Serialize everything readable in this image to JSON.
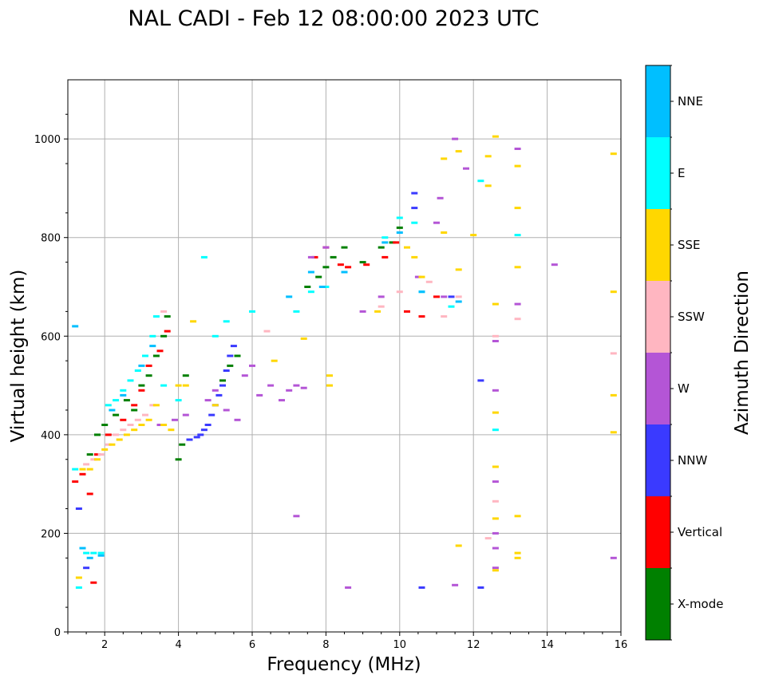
{
  "chart_data": {
    "type": "scatter",
    "title": "NAL CADI - Feb 12 08:00:00 2023 UTC",
    "xlabel": "Frequency (MHz)",
    "ylabel": "Virtual height (km)",
    "xlim": [
      1,
      16
    ],
    "ylim": [
      0,
      1120
    ],
    "xticks": [
      2,
      4,
      6,
      8,
      10,
      12,
      14,
      16
    ],
    "yticks": [
      0,
      200,
      400,
      600,
      800,
      1000
    ],
    "grid": true,
    "colorbar": {
      "label": "Azimuth Direction",
      "categories": [
        {
          "name": "X-mode",
          "color": "#008000"
        },
        {
          "name": "Vertical",
          "color": "#ff0000"
        },
        {
          "name": "NNW",
          "color": "#3a3aff"
        },
        {
          "name": "W",
          "color": "#b455d6"
        },
        {
          "name": "SSW",
          "color": "#ffb6c1"
        },
        {
          "name": "SSE",
          "color": "#ffd700"
        },
        {
          "name": "E",
          "color": "#00ffff"
        },
        {
          "name": "NNE",
          "color": "#00bfff"
        }
      ]
    },
    "series": [
      {
        "name": "X-mode",
        "points": [
          [
            1.6,
            360
          ],
          [
            1.8,
            400
          ],
          [
            2.0,
            420
          ],
          [
            2.3,
            440
          ],
          [
            2.6,
            470
          ],
          [
            2.8,
            450
          ],
          [
            3.0,
            500
          ],
          [
            3.2,
            520
          ],
          [
            3.4,
            560
          ],
          [
            3.6,
            600
          ],
          [
            3.7,
            640
          ],
          [
            4.0,
            350
          ],
          [
            4.1,
            380
          ],
          [
            4.2,
            520
          ],
          [
            5.2,
            510
          ],
          [
            5.4,
            540
          ],
          [
            5.6,
            560
          ],
          [
            7.5,
            700
          ],
          [
            7.8,
            720
          ],
          [
            8.0,
            740
          ],
          [
            8.2,
            760
          ],
          [
            8.5,
            780
          ],
          [
            9.0,
            750
          ],
          [
            9.5,
            780
          ],
          [
            9.8,
            790
          ],
          [
            10.0,
            820
          ]
        ]
      },
      {
        "name": "Vertical",
        "points": [
          [
            1.2,
            305
          ],
          [
            1.4,
            320
          ],
          [
            1.6,
            280
          ],
          [
            1.7,
            100
          ],
          [
            1.8,
            360
          ],
          [
            2.1,
            400
          ],
          [
            2.5,
            430
          ],
          [
            2.8,
            460
          ],
          [
            3.0,
            490
          ],
          [
            3.2,
            540
          ],
          [
            3.5,
            570
          ],
          [
            3.7,
            610
          ],
          [
            7.7,
            760
          ],
          [
            8.0,
            780
          ],
          [
            8.4,
            745
          ],
          [
            8.6,
            740
          ],
          [
            9.1,
            745
          ],
          [
            9.6,
            760
          ],
          [
            9.9,
            790
          ],
          [
            10.2,
            650
          ],
          [
            10.6,
            640
          ],
          [
            11.0,
            680
          ]
        ]
      },
      {
        "name": "NNW",
        "points": [
          [
            1.3,
            250
          ],
          [
            1.5,
            130
          ],
          [
            4.3,
            390
          ],
          [
            4.5,
            395
          ],
          [
            4.6,
            400
          ],
          [
            4.7,
            410
          ],
          [
            4.8,
            420
          ],
          [
            4.9,
            440
          ],
          [
            5.0,
            460
          ],
          [
            5.1,
            480
          ],
          [
            5.2,
            500
          ],
          [
            5.3,
            530
          ],
          [
            5.4,
            560
          ],
          [
            5.5,
            580
          ],
          [
            10.4,
            890
          ],
          [
            10.4,
            860
          ],
          [
            10.6,
            90
          ],
          [
            11.4,
            680
          ],
          [
            12.2,
            90
          ],
          [
            12.2,
            510
          ]
        ]
      },
      {
        "name": "W",
        "points": [
          [
            3.5,
            420
          ],
          [
            3.9,
            430
          ],
          [
            4.2,
            440
          ],
          [
            4.8,
            470
          ],
          [
            5.0,
            490
          ],
          [
            5.3,
            450
          ],
          [
            5.6,
            430
          ],
          [
            5.8,
            520
          ],
          [
            6.0,
            540
          ],
          [
            6.2,
            480
          ],
          [
            6.5,
            500
          ],
          [
            6.8,
            470
          ],
          [
            7.0,
            490
          ],
          [
            7.2,
            500
          ],
          [
            7.4,
            495
          ],
          [
            7.2,
            235
          ],
          [
            7.6,
            760
          ],
          [
            8.0,
            780
          ],
          [
            8.6,
            90
          ],
          [
            9.0,
            650
          ],
          [
            9.5,
            680
          ],
          [
            10.5,
            720
          ],
          [
            11.0,
            830
          ],
          [
            11.2,
            680
          ],
          [
            11.5,
            1000
          ],
          [
            12.6,
            130
          ],
          [
            12.6,
            170
          ],
          [
            12.6,
            200
          ],
          [
            12.6,
            305
          ],
          [
            12.6,
            490
          ],
          [
            12.6,
            590
          ],
          [
            13.2,
            980
          ],
          [
            13.2,
            665
          ],
          [
            14.2,
            745
          ],
          [
            15.8,
            150
          ],
          [
            11.5,
            95
          ],
          [
            11.8,
            940
          ],
          [
            11.1,
            880
          ]
        ]
      },
      {
        "name": "SSW",
        "points": [
          [
            1.5,
            340
          ],
          [
            1.7,
            350
          ],
          [
            1.9,
            360
          ],
          [
            2.1,
            380
          ],
          [
            2.3,
            400
          ],
          [
            2.5,
            410
          ],
          [
            2.7,
            420
          ],
          [
            2.9,
            430
          ],
          [
            3.1,
            440
          ],
          [
            3.3,
            460
          ],
          [
            3.6,
            650
          ],
          [
            6.4,
            610
          ],
          [
            9.5,
            660
          ],
          [
            10.0,
            690
          ],
          [
            10.8,
            710
          ],
          [
            11.2,
            640
          ],
          [
            11.6,
            680
          ],
          [
            12.4,
            190
          ],
          [
            12.6,
            265
          ],
          [
            12.6,
            600
          ],
          [
            13.2,
            635
          ],
          [
            15.8,
            565
          ]
        ]
      },
      {
        "name": "SSE",
        "points": [
          [
            1.3,
            110
          ],
          [
            1.4,
            330
          ],
          [
            1.6,
            330
          ],
          [
            1.8,
            350
          ],
          [
            2.0,
            370
          ],
          [
            2.2,
            380
          ],
          [
            2.4,
            390
          ],
          [
            2.6,
            400
          ],
          [
            2.8,
            410
          ],
          [
            3.0,
            420
          ],
          [
            3.2,
            430
          ],
          [
            3.4,
            460
          ],
          [
            3.6,
            420
          ],
          [
            3.8,
            410
          ],
          [
            4.0,
            500
          ],
          [
            4.2,
            500
          ],
          [
            4.4,
            630
          ],
          [
            5.0,
            460
          ],
          [
            6.6,
            550
          ],
          [
            7.4,
            595
          ],
          [
            8.1,
            520
          ],
          [
            8.1,
            500
          ],
          [
            9.4,
            650
          ],
          [
            10.2,
            780
          ],
          [
            10.4,
            760
          ],
          [
            10.6,
            720
          ],
          [
            11.2,
            810
          ],
          [
            11.2,
            960
          ],
          [
            11.6,
            975
          ],
          [
            11.6,
            735
          ],
          [
            12.0,
            805
          ],
          [
            12.4,
            905
          ],
          [
            12.4,
            965
          ],
          [
            12.6,
            1005
          ],
          [
            12.6,
            665
          ],
          [
            12.6,
            445
          ],
          [
            12.6,
            335
          ],
          [
            12.6,
            230
          ],
          [
            12.6,
            125
          ],
          [
            11.6,
            175
          ],
          [
            13.2,
            945
          ],
          [
            13.2,
            860
          ],
          [
            13.2,
            740
          ],
          [
            13.2,
            235
          ],
          [
            13.2,
            160
          ],
          [
            13.2,
            150
          ],
          [
            15.8,
            970
          ],
          [
            15.8,
            690
          ],
          [
            15.8,
            480
          ],
          [
            15.8,
            405
          ]
        ]
      },
      {
        "name": "E",
        "points": [
          [
            1.2,
            330
          ],
          [
            1.3,
            90
          ],
          [
            1.5,
            160
          ],
          [
            1.7,
            160
          ],
          [
            1.9,
            160
          ],
          [
            2.1,
            460
          ],
          [
            2.3,
            470
          ],
          [
            2.5,
            490
          ],
          [
            2.7,
            510
          ],
          [
            2.9,
            530
          ],
          [
            3.1,
            560
          ],
          [
            3.3,
            600
          ],
          [
            3.4,
            640
          ],
          [
            3.6,
            500
          ],
          [
            4.0,
            470
          ],
          [
            5.0,
            600
          ],
          [
            5.3,
            630
          ],
          [
            6.0,
            650
          ],
          [
            7.2,
            650
          ],
          [
            7.6,
            690
          ],
          [
            8.0,
            700
          ],
          [
            9.6,
            800
          ],
          [
            10.0,
            840
          ],
          [
            10.4,
            830
          ],
          [
            10.6,
            690
          ],
          [
            11.4,
            660
          ],
          [
            12.2,
            915
          ],
          [
            12.6,
            410
          ],
          [
            13.2,
            805
          ],
          [
            4.7,
            760
          ]
        ]
      },
      {
        "name": "NNE",
        "points": [
          [
            1.2,
            620
          ],
          [
            1.4,
            170
          ],
          [
            1.6,
            150
          ],
          [
            1.9,
            155
          ],
          [
            2.2,
            450
          ],
          [
            2.5,
            480
          ],
          [
            3.0,
            540
          ],
          [
            3.3,
            580
          ],
          [
            7.0,
            680
          ],
          [
            7.6,
            730
          ],
          [
            7.9,
            700
          ],
          [
            8.5,
            730
          ],
          [
            9.6,
            790
          ],
          [
            10.0,
            810
          ],
          [
            10.6,
            690
          ],
          [
            11.6,
            670
          ]
        ]
      }
    ]
  }
}
